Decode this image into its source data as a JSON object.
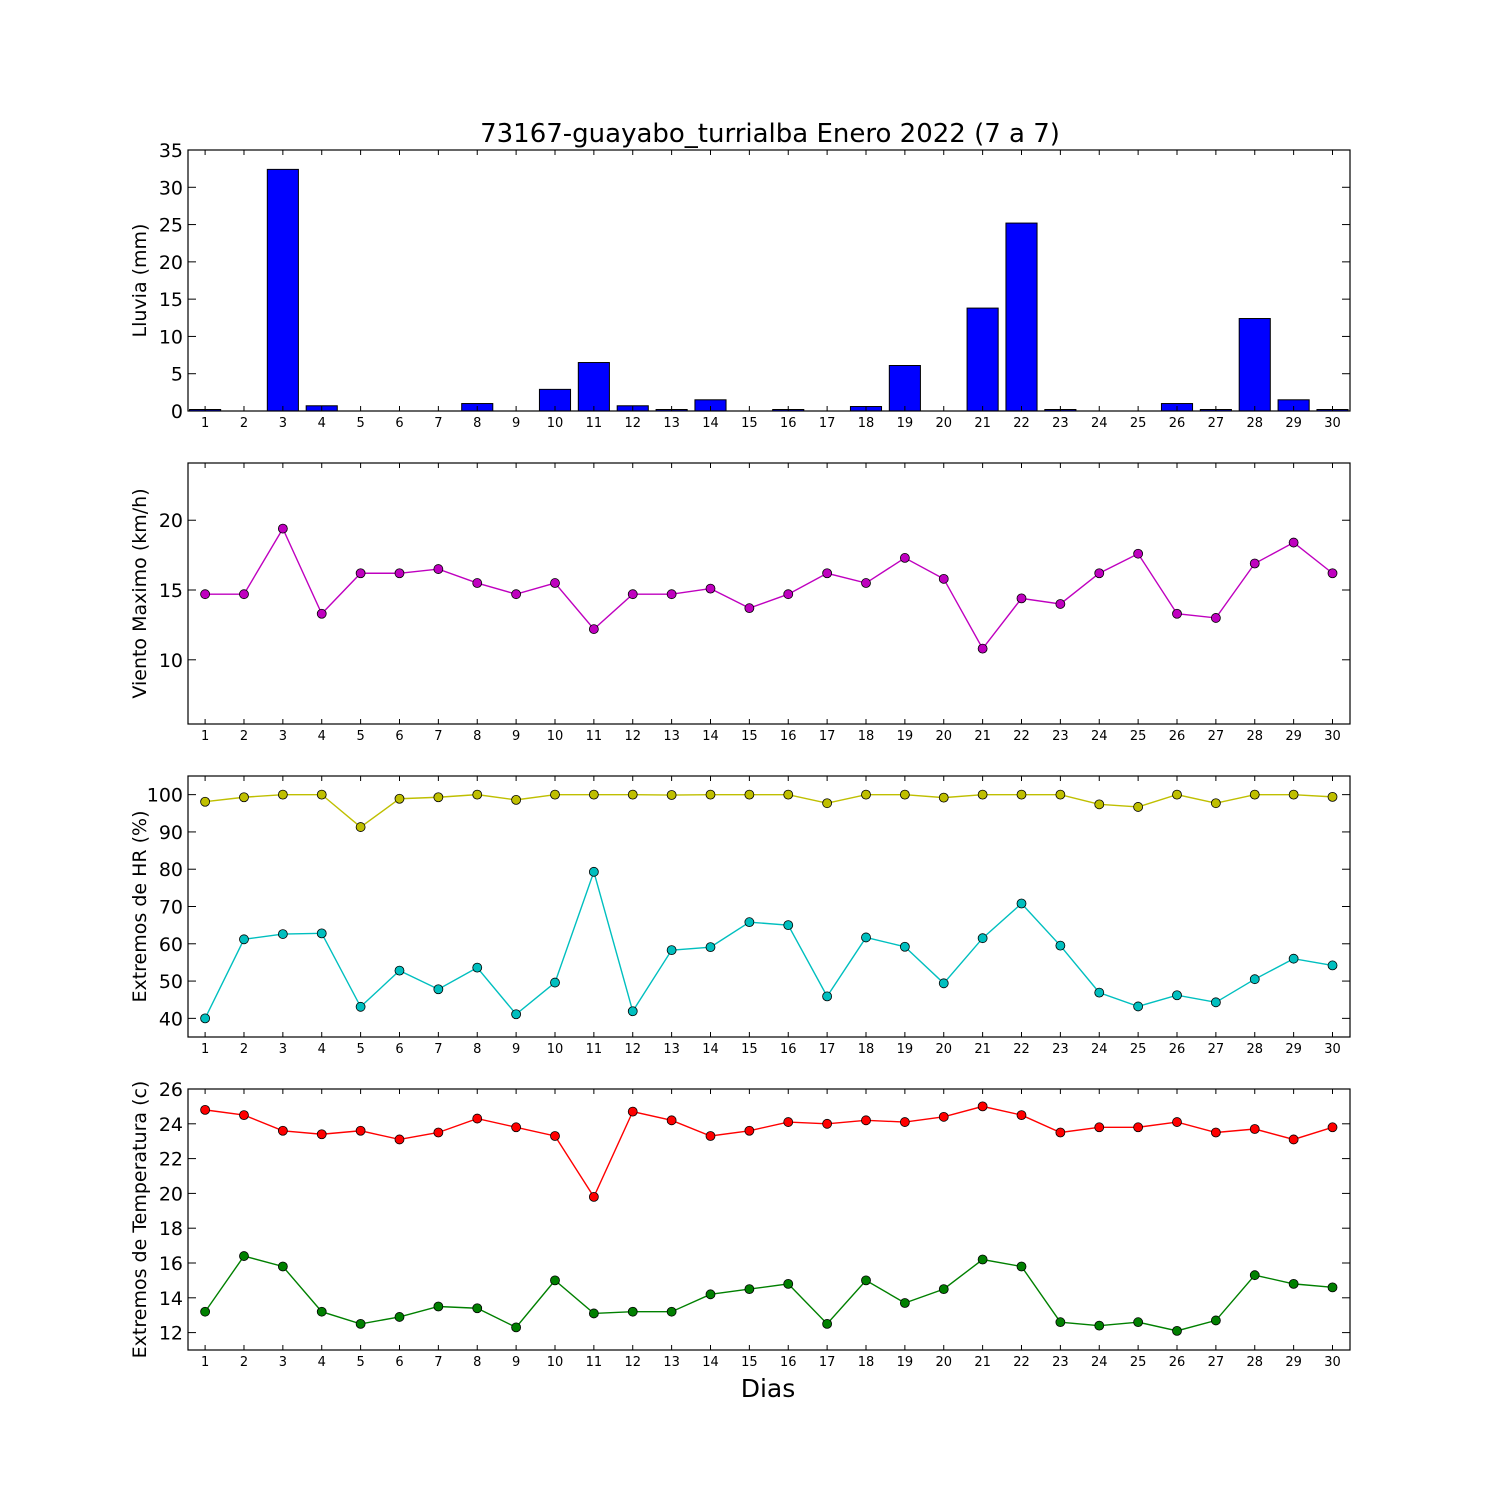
{
  "figure": {
    "title": "73167-guayabo_turrialba Enero 2022  (7 a 7)",
    "xlabel": "Dias"
  },
  "chart_data": [
    {
      "type": "bar",
      "ylabel": "Lluvia (mm)",
      "ylim": [
        0,
        35
      ],
      "yticks": [
        0,
        5,
        10,
        15,
        20,
        25,
        30,
        35
      ],
      "x": [
        1,
        2,
        3,
        4,
        5,
        6,
        7,
        8,
        9,
        10,
        11,
        12,
        13,
        14,
        15,
        16,
        17,
        18,
        19,
        20,
        21,
        22,
        23,
        24,
        25,
        26,
        27,
        28,
        29,
        30
      ],
      "series": [
        {
          "color": "#0000ff",
          "values": [
            0.2,
            0,
            32.4,
            0.7,
            0,
            0,
            0,
            1.0,
            0,
            2.9,
            6.5,
            0.7,
            0.2,
            1.5,
            0,
            0.2,
            0,
            0.6,
            6.1,
            0,
            13.8,
            25.2,
            0.2,
            0,
            0,
            1.0,
            0.2,
            12.4,
            1.5,
            0.2
          ]
        }
      ]
    },
    {
      "type": "line",
      "ylabel": "Viento Maximo (km/h)",
      "ylim": [
        5.4,
        24.1
      ],
      "yticks": [
        10,
        15,
        20
      ],
      "x": [
        1,
        2,
        3,
        4,
        5,
        6,
        7,
        8,
        9,
        10,
        11,
        12,
        13,
        14,
        15,
        16,
        17,
        18,
        19,
        20,
        21,
        22,
        23,
        24,
        25,
        26,
        27,
        28,
        29,
        30
      ],
      "series": [
        {
          "color": "#bf00bf",
          "values": [
            14.7,
            14.7,
            19.4,
            13.3,
            16.2,
            16.2,
            16.5,
            15.5,
            14.7,
            15.5,
            12.2,
            14.7,
            14.7,
            15.1,
            13.7,
            14.7,
            16.2,
            15.5,
            17.3,
            15.8,
            10.8,
            14.4,
            14.0,
            16.2,
            17.6,
            13.3,
            13.0,
            16.9,
            18.4,
            16.2
          ]
        }
      ]
    },
    {
      "type": "line",
      "ylabel": "Extremos de HR (%)",
      "ylim": [
        35,
        105
      ],
      "yticks": [
        40,
        50,
        60,
        70,
        80,
        90,
        100
      ],
      "x": [
        1,
        2,
        3,
        4,
        5,
        6,
        7,
        8,
        9,
        10,
        11,
        12,
        13,
        14,
        15,
        16,
        17,
        18,
        19,
        20,
        21,
        22,
        23,
        24,
        25,
        26,
        27,
        28,
        29,
        30
      ],
      "series": [
        {
          "color": "#bfbf00",
          "values": [
            98.1,
            99.3,
            100,
            100,
            91.3,
            98.9,
            99.3,
            100,
            98.6,
            100,
            100,
            100,
            99.9,
            100,
            100,
            100,
            97.7,
            100,
            100,
            99.2,
            100,
            100,
            100,
            97.4,
            96.7,
            100,
            97.7,
            100,
            100,
            99.4
          ]
        },
        {
          "color": "#00bfbf",
          "values": [
            40.0,
            61.2,
            62.6,
            62.8,
            43.1,
            52.8,
            47.8,
            53.6,
            41.1,
            49.6,
            79.3,
            41.9,
            58.3,
            59.1,
            65.8,
            65.0,
            45.9,
            61.7,
            59.2,
            49.4,
            61.5,
            70.8,
            59.5,
            46.9,
            43.2,
            46.2,
            44.3,
            50.5,
            56.0,
            54.2
          ]
        }
      ]
    },
    {
      "type": "line",
      "ylabel": "Extremos de Temperatura (c)",
      "ylim": [
        11.0,
        26.0
      ],
      "yticks": [
        12,
        14,
        16,
        18,
        20,
        22,
        24,
        26
      ],
      "x": [
        1,
        2,
        3,
        4,
        5,
        6,
        7,
        8,
        9,
        10,
        11,
        12,
        13,
        14,
        15,
        16,
        17,
        18,
        19,
        20,
        21,
        22,
        23,
        24,
        25,
        26,
        27,
        28,
        29,
        30
      ],
      "series": [
        {
          "color": "#ff0000",
          "values": [
            24.8,
            24.5,
            23.6,
            23.4,
            23.6,
            23.1,
            23.5,
            24.3,
            23.8,
            23.3,
            19.8,
            24.7,
            24.2,
            23.3,
            23.6,
            24.1,
            24.0,
            24.2,
            24.1,
            24.4,
            25.0,
            24.5,
            23.5,
            23.8,
            23.8,
            24.1,
            23.5,
            23.7,
            23.1,
            23.8
          ]
        },
        {
          "color": "#008000",
          "values": [
            13.2,
            16.4,
            15.8,
            13.2,
            12.5,
            12.9,
            13.5,
            13.4,
            12.3,
            15.0,
            13.1,
            13.2,
            13.2,
            14.2,
            14.5,
            14.8,
            12.5,
            15.0,
            13.7,
            14.5,
            16.2,
            15.8,
            12.6,
            12.4,
            12.6,
            12.1,
            12.7,
            15.3,
            14.8,
            14.6
          ]
        }
      ]
    }
  ]
}
